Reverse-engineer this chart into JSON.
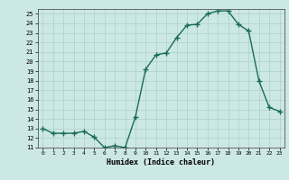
{
  "x": [
    0,
    1,
    2,
    3,
    4,
    5,
    6,
    7,
    8,
    9,
    10,
    11,
    12,
    13,
    14,
    15,
    16,
    17,
    18,
    19,
    20,
    21,
    22,
    23
  ],
  "y": [
    13,
    12.5,
    12.5,
    12.5,
    12.7,
    12.1,
    11.0,
    11.2,
    11.0,
    14.2,
    19.2,
    20.7,
    20.9,
    22.5,
    23.8,
    23.9,
    25.0,
    25.3,
    25.3,
    23.9,
    23.2,
    18.0,
    15.2,
    14.8
  ],
  "xlabel": "Humidex (Indice chaleur)",
  "ylim": [
    11,
    25.5
  ],
  "xlim": [
    -0.5,
    23.5
  ],
  "yticks": [
    11,
    12,
    13,
    14,
    15,
    16,
    17,
    18,
    19,
    20,
    21,
    22,
    23,
    24,
    25
  ],
  "xticks": [
    0,
    1,
    2,
    3,
    4,
    5,
    6,
    7,
    8,
    9,
    10,
    11,
    12,
    13,
    14,
    15,
    16,
    17,
    18,
    19,
    20,
    21,
    22,
    23
  ],
  "line_color": "#1a6b5a",
  "bg_color": "#cce8e4",
  "grid_color": "#aad0cc",
  "marker": "+",
  "marker_size": 4,
  "line_width": 1.0
}
